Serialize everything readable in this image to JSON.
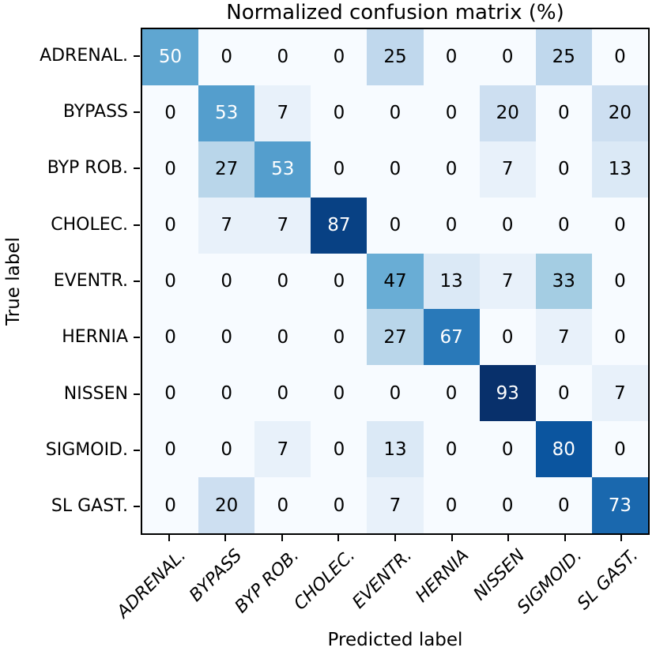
{
  "title": "Normalized confusion matrix (%)",
  "chart_data": {
    "type": "heatmap",
    "title": "Normalized confusion matrix (%)",
    "xlabel": "Predicted label",
    "ylabel": "True label",
    "unit": "%",
    "x_categories": [
      "ADRENAL.",
      "BYPASS",
      "BYP ROB.",
      "CHOLEC.",
      "EVENTR.",
      "HERNIA",
      "NISSEN",
      "SIGMOID.",
      "SL GAST."
    ],
    "y_categories": [
      "ADRENAL.",
      "BYPASS",
      "BYP ROB.",
      "CHOLEC.",
      "EVENTR.",
      "HERNIA",
      "NISSEN",
      "SIGMOID.",
      "SL GAST."
    ],
    "matrix": [
      [
        50,
        0,
        0,
        0,
        25,
        0,
        0,
        25,
        0
      ],
      [
        0,
        53,
        7,
        0,
        0,
        0,
        20,
        0,
        20
      ],
      [
        0,
        27,
        53,
        0,
        0,
        0,
        7,
        0,
        13
      ],
      [
        0,
        7,
        7,
        87,
        0,
        0,
        0,
        0,
        0
      ],
      [
        0,
        0,
        0,
        0,
        47,
        13,
        7,
        33,
        0
      ],
      [
        0,
        0,
        0,
        0,
        27,
        67,
        0,
        7,
        0
      ],
      [
        0,
        0,
        0,
        0,
        0,
        0,
        93,
        0,
        7
      ],
      [
        0,
        0,
        7,
        0,
        13,
        0,
        0,
        80,
        0
      ],
      [
        0,
        20,
        0,
        0,
        7,
        0,
        0,
        0,
        73
      ]
    ],
    "vmin": 0,
    "vmax": 93,
    "colormap": "Blues",
    "colormap_stops": [
      {
        "t": 0.0,
        "color": "#f7fbff"
      },
      {
        "t": 0.125,
        "color": "#deebf7"
      },
      {
        "t": 0.25,
        "color": "#c6dbef"
      },
      {
        "t": 0.375,
        "color": "#9ecae1"
      },
      {
        "t": 0.5,
        "color": "#6baed6"
      },
      {
        "t": 0.625,
        "color": "#4292c6"
      },
      {
        "t": 0.75,
        "color": "#2171b5"
      },
      {
        "t": 0.875,
        "color": "#08519c"
      },
      {
        "t": 1.0,
        "color": "#08306b"
      }
    ],
    "white_text_threshold": 50,
    "colors": {
      "text_dark": "#000000",
      "text_light": "#ffffff",
      "axis": "#000000",
      "background": "#ffffff"
    },
    "legend": "none",
    "grid": false,
    "x_tick_rotation_deg": 45,
    "x_tick_style": "italic"
  }
}
